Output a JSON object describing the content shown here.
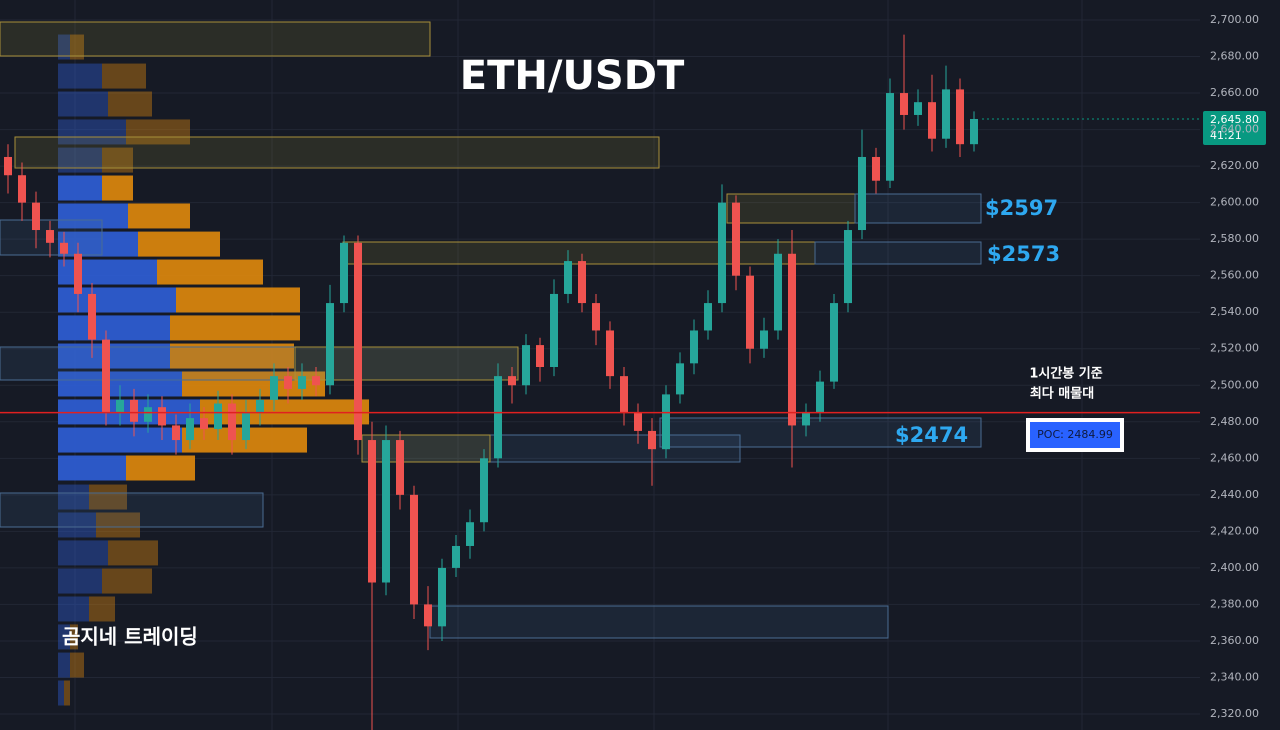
{
  "chart_data": {
    "type": "candlestick",
    "title": "ETH/USDT",
    "watermark": "곰지네 트레이딩",
    "ylim": [
      2310,
      2710
    ],
    "yticks": [
      {
        "value": 2320,
        "label": "2,320.00"
      },
      {
        "value": 2340,
        "label": "2,340.00"
      },
      {
        "value": 2360,
        "label": "2,360.00"
      },
      {
        "value": 2380,
        "label": "2,380.00"
      },
      {
        "value": 2400,
        "label": "2,400.00"
      },
      {
        "value": 2420,
        "label": "2,420.00"
      },
      {
        "value": 2440,
        "label": "2,440.00"
      },
      {
        "value": 2460,
        "label": "2,460.00"
      },
      {
        "value": 2480,
        "label": "2,480.00"
      },
      {
        "value": 2500,
        "label": "2,500.00"
      },
      {
        "value": 2520,
        "label": "2,520.00"
      },
      {
        "value": 2540,
        "label": "2,540.00"
      },
      {
        "value": 2560,
        "label": "2,560.00"
      },
      {
        "value": 2580,
        "label": "2,580.00"
      },
      {
        "value": 2600,
        "label": "2,600.00"
      },
      {
        "value": 2620,
        "label": "2,620.00"
      },
      {
        "value": 2640,
        "label": "2,640.00"
      },
      {
        "value": 2660,
        "label": "2,660.00"
      },
      {
        "value": 2680,
        "label": "2,680.00"
      },
      {
        "value": 2700,
        "label": "2,700.00"
      }
    ],
    "grid": true,
    "up_color": "#26a69a",
    "down_color": "#ef5350",
    "open": [
      2625,
      2615,
      2600,
      2585,
      2578,
      2572,
      2550,
      2525,
      2485,
      2492,
      2480,
      2488,
      2478,
      2470,
      2482,
      2476,
      2490,
      2470,
      2485,
      2492,
      2505,
      2498,
      2505,
      2500,
      2545,
      2578,
      2470,
      2392,
      2470,
      2440,
      2380,
      2368,
      2400,
      2412,
      2425,
      2460,
      2505,
      2500,
      2522,
      2510,
      2550,
      2568,
      2545,
      2530,
      2505,
      2485,
      2475,
      2465,
      2495,
      2512,
      2530,
      2545,
      2600,
      2560,
      2520,
      2530,
      2572,
      2478,
      2485,
      2502,
      2545,
      2585,
      2625,
      2612,
      2660,
      2648,
      2655,
      2635,
      2662,
      2632
    ],
    "high": [
      2632,
      2622,
      2606,
      2590,
      2584,
      2578,
      2556,
      2530,
      2500,
      2498,
      2495,
      2494,
      2484,
      2490,
      2488,
      2497,
      2495,
      2492,
      2498,
      2512,
      2510,
      2512,
      2510,
      2555,
      2582,
      2582,
      2480,
      2478,
      2475,
      2445,
      2390,
      2405,
      2418,
      2432,
      2465,
      2512,
      2510,
      2528,
      2526,
      2558,
      2574,
      2572,
      2550,
      2535,
      2510,
      2490,
      2482,
      2500,
      2518,
      2536,
      2552,
      2610,
      2604,
      2565,
      2537,
      2580,
      2585,
      2490,
      2508,
      2550,
      2590,
      2640,
      2630,
      2668,
      2692,
      2662,
      2670,
      2675,
      2668,
      2650
    ],
    "low": [
      2605,
      2590,
      2575,
      2570,
      2565,
      2540,
      2515,
      2478,
      2478,
      2472,
      2474,
      2470,
      2462,
      2465,
      2470,
      2470,
      2462,
      2465,
      2478,
      2486,
      2490,
      2492,
      2494,
      2495,
      2540,
      2462,
      2310,
      2385,
      2432,
      2372,
      2355,
      2360,
      2395,
      2405,
      2420,
      2455,
      2490,
      2495,
      2502,
      2505,
      2545,
      2540,
      2522,
      2498,
      2478,
      2468,
      2445,
      2460,
      2490,
      2506,
      2525,
      2540,
      2552,
      2512,
      2515,
      2525,
      2455,
      2472,
      2480,
      2498,
      2540,
      2580,
      2605,
      2608,
      2640,
      2642,
      2628,
      2630,
      2625,
      2628
    ],
    "close": [
      2615,
      2600,
      2585,
      2578,
      2572,
      2550,
      2525,
      2485,
      2492,
      2480,
      2488,
      2478,
      2470,
      2482,
      2476,
      2490,
      2470,
      2485,
      2492,
      2505,
      2498,
      2505,
      2500,
      2545,
      2578,
      2470,
      2392,
      2470,
      2440,
      2380,
      2368,
      2400,
      2412,
      2425,
      2460,
      2505,
      2500,
      2522,
      2510,
      2550,
      2568,
      2545,
      2530,
      2505,
      2485,
      2475,
      2465,
      2495,
      2512,
      2530,
      2545,
      2600,
      2560,
      2520,
      2530,
      2572,
      2478,
      2485,
      2502,
      2545,
      2585,
      2625,
      2612,
      2660,
      2648,
      2655,
      2635,
      2662,
      2632,
      2645.8
    ],
    "volume_profile": {
      "prices": [
        2685.2,
        2669.3,
        2654.0,
        2638.7,
        2623.3,
        2608.0,
        2592.7,
        2577.3,
        2562.0,
        2546.7,
        2531.4,
        2516.0,
        2500.7,
        2485.4,
        2470.0,
        2454.7,
        2438.8,
        2423.5,
        2408.2,
        2392.8,
        2377.5,
        2362.2,
        2346.8,
        2331.5
      ],
      "sell": [
        12,
        44,
        50,
        68,
        44,
        44,
        70,
        80,
        99,
        118,
        112,
        112,
        124,
        142,
        124,
        68,
        31,
        38,
        50,
        44,
        31,
        12,
        12,
        6
      ],
      "buy": [
        14,
        44,
        44,
        64,
        31,
        31,
        62,
        82,
        106,
        124,
        130,
        124,
        143,
        169,
        125,
        69,
        38,
        44,
        50,
        50,
        26,
        8,
        14,
        6
      ],
      "sell_color": "#2f5fd8",
      "buy_color": "#e08a0c",
      "value_area": [
        2446,
        2615
      ]
    },
    "poc": 2484.99,
    "poc_label": "POC: 2484.99",
    "annotation_lines": [
      "1시간봉 기준",
      "최다 매물대"
    ],
    "zone_labels": [
      "$2597",
      "$2573",
      "$2474"
    ],
    "last_price": {
      "value": 2645.8,
      "label": "2,645.80"
    },
    "countdown": "41:21"
  }
}
